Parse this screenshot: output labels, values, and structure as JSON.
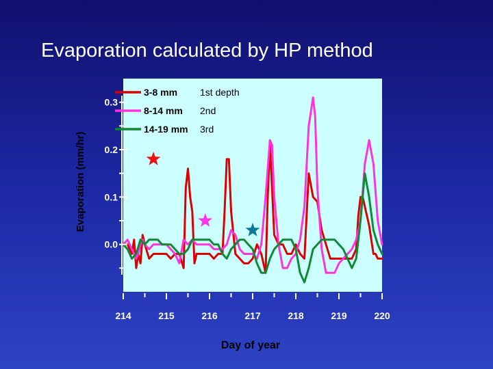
{
  "slide": {
    "title": "Evaporation calculated by HP method"
  },
  "colors": {
    "background_top": "#10106e",
    "background_bottom": "#2d44c4",
    "plot_background": "#ccffff",
    "axis": "#ffffff",
    "series_red": "#dd0000",
    "series_magenta": "#ff33dd",
    "series_green": "#118833",
    "star_red": "#ee1111",
    "star_magenta": "#ff33ee",
    "star_teal": "#117799"
  },
  "chart_data": {
    "type": "line",
    "title": "Evaporation calculated by HP method",
    "xlabel": "Day of year",
    "ylabel": "Evaporation (mm/hr)",
    "xlim": [
      214,
      220
    ],
    "ylim": [
      -0.1,
      0.35
    ],
    "x_ticks": [
      214,
      215,
      216,
      217,
      218,
      219,
      220
    ],
    "y_ticks": [
      0.0,
      0.1,
      0.2,
      0.3
    ],
    "y_tick_labels": [
      "0.0",
      "0.1",
      "0.2",
      "0.3"
    ],
    "grid": false,
    "legend": {
      "placement": "top-left",
      "entries": [
        {
          "label": "3-8 mm",
          "note": "1st depth",
          "color": "#dd0000"
        },
        {
          "label": "8-14 mm",
          "note": "2nd",
          "color": "#ff33dd"
        },
        {
          "label": "14-19 mm",
          "note": "3rd",
          "color": "#118833"
        }
      ]
    },
    "series": [
      {
        "name": "3-8 mm",
        "color": "#dd0000",
        "x": [
          214.0,
          214.1,
          214.2,
          214.25,
          214.3,
          214.35,
          214.4,
          214.45,
          214.5,
          214.6,
          214.7,
          214.8,
          214.9,
          215.0,
          215.1,
          215.2,
          215.3,
          215.4,
          215.45,
          215.5,
          215.55,
          215.6,
          215.65,
          215.7,
          215.8,
          215.9,
          216.0,
          216.1,
          216.2,
          216.3,
          216.35,
          216.4,
          216.45,
          216.5,
          216.6,
          216.7,
          216.8,
          216.9,
          217.0,
          217.1,
          217.2,
          217.3,
          217.35,
          217.4,
          217.45,
          217.5,
          217.55,
          217.6,
          217.7,
          217.8,
          217.9,
          218.0,
          218.1,
          218.2,
          218.3,
          218.4,
          218.5,
          218.6,
          218.7,
          218.8,
          218.9,
          219.0,
          219.1,
          219.2,
          219.3,
          219.4,
          219.45,
          219.5,
          219.55,
          219.6,
          219.7,
          219.8,
          219.85,
          219.9,
          220.0
        ],
        "values": [
          0.0,
          0.0,
          -0.02,
          0.01,
          -0.05,
          -0.02,
          -0.04,
          0.02,
          0.0,
          -0.03,
          -0.02,
          -0.02,
          -0.02,
          -0.02,
          -0.03,
          -0.02,
          -0.02,
          -0.05,
          0.12,
          0.16,
          0.1,
          0.07,
          -0.04,
          -0.02,
          -0.02,
          -0.02,
          -0.02,
          -0.03,
          -0.02,
          -0.02,
          0.07,
          0.18,
          0.18,
          0.07,
          -0.02,
          -0.03,
          -0.04,
          -0.04,
          -0.03,
          0.0,
          -0.02,
          -0.06,
          0.1,
          0.21,
          0.12,
          0.02,
          0.01,
          0.0,
          0.0,
          -0.02,
          -0.02,
          0.0,
          -0.02,
          -0.03,
          0.15,
          0.1,
          0.09,
          0.03,
          0.0,
          -0.03,
          -0.03,
          -0.03,
          -0.03,
          -0.03,
          -0.03,
          -0.01,
          0.06,
          0.1,
          0.1,
          0.08,
          0.04,
          -0.02,
          -0.02,
          -0.03,
          -0.03
        ]
      },
      {
        "name": "8-14 mm",
        "color": "#ff33dd",
        "x": [
          214.0,
          214.1,
          214.2,
          214.3,
          214.35,
          214.4,
          214.45,
          214.5,
          214.6,
          214.7,
          214.8,
          214.9,
          215.0,
          215.1,
          215.2,
          215.3,
          215.4,
          215.5,
          215.6,
          215.7,
          215.8,
          215.9,
          216.0,
          216.1,
          216.2,
          216.3,
          216.4,
          216.5,
          216.6,
          216.7,
          216.8,
          216.9,
          217.0,
          217.1,
          217.2,
          217.3,
          217.4,
          217.45,
          217.5,
          217.6,
          217.7,
          217.8,
          217.9,
          218.0,
          218.1,
          218.2,
          218.3,
          218.4,
          218.45,
          218.5,
          218.6,
          218.7,
          218.8,
          218.9,
          219.0,
          219.1,
          219.2,
          219.3,
          219.4,
          219.5,
          219.6,
          219.7,
          219.8,
          219.9,
          220.0
        ],
        "values": [
          0.0,
          0.01,
          -0.01,
          -0.03,
          -0.02,
          0.0,
          0.01,
          0.0,
          -0.01,
          0.0,
          0.0,
          0.0,
          0.0,
          -0.01,
          -0.02,
          -0.04,
          0.01,
          0.0,
          0.01,
          0.0,
          0.0,
          0.0,
          0.0,
          -0.01,
          -0.01,
          -0.01,
          0.0,
          0.03,
          0.02,
          -0.01,
          -0.02,
          -0.02,
          -0.02,
          -0.03,
          0.0,
          0.1,
          0.22,
          0.21,
          0.1,
          0.0,
          -0.05,
          -0.05,
          -0.03,
          -0.02,
          0.01,
          0.08,
          0.25,
          0.31,
          0.27,
          0.12,
          -0.01,
          -0.06,
          -0.06,
          -0.06,
          -0.04,
          -0.03,
          -0.02,
          -0.01,
          0.01,
          0.05,
          0.17,
          0.22,
          0.17,
          0.05,
          0.0
        ]
      },
      {
        "name": "14-19 mm",
        "color": "#118833",
        "x": [
          214.0,
          214.1,
          214.2,
          214.3,
          214.4,
          214.5,
          214.6,
          214.7,
          214.8,
          214.9,
          215.0,
          215.1,
          215.2,
          215.3,
          215.4,
          215.5,
          215.6,
          215.7,
          215.8,
          215.9,
          216.0,
          216.1,
          216.2,
          216.3,
          216.4,
          216.5,
          216.6,
          216.7,
          216.8,
          216.9,
          217.0,
          217.1,
          217.2,
          217.3,
          217.4,
          217.5,
          217.6,
          217.7,
          217.8,
          217.9,
          218.0,
          218.1,
          218.2,
          218.3,
          218.4,
          218.5,
          218.6,
          218.7,
          218.8,
          218.9,
          219.0,
          219.1,
          219.2,
          219.3,
          219.4,
          219.5,
          219.6,
          219.7,
          219.8,
          219.9,
          220.0
        ],
        "values": [
          0.0,
          -0.01,
          -0.03,
          -0.02,
          0.01,
          0.0,
          0.01,
          0.01,
          0.01,
          0.0,
          0.0,
          0.0,
          -0.01,
          -0.02,
          -0.02,
          -0.01,
          0.01,
          0.01,
          0.01,
          0.01,
          0.01,
          0.0,
          0.0,
          -0.02,
          -0.03,
          -0.01,
          0.0,
          0.01,
          0.01,
          0.0,
          -0.01,
          -0.04,
          -0.06,
          -0.06,
          -0.03,
          -0.01,
          0.0,
          0.01,
          0.01,
          0.01,
          -0.01,
          -0.06,
          -0.08,
          -0.05,
          -0.01,
          0.0,
          0.01,
          0.01,
          0.01,
          0.01,
          0.0,
          -0.01,
          -0.03,
          -0.05,
          -0.03,
          0.05,
          0.15,
          0.1,
          0.03,
          0.0,
          -0.02
        ]
      }
    ],
    "stars": [
      {
        "x": 214.7,
        "y": 0.18,
        "color": "#ee1111"
      },
      {
        "x": 215.9,
        "y": 0.05,
        "color": "#ff33ee"
      },
      {
        "x": 217.0,
        "y": 0.03,
        "color": "#117799"
      }
    ]
  }
}
